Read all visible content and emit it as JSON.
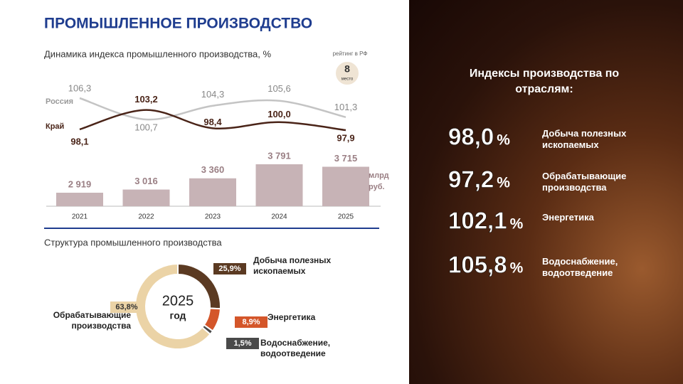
{
  "title": "ПРОМЫШЛЕННОЕ ПРОИЗВОДСТВО",
  "rating": {
    "label": "рейтинг в РФ",
    "value": 8,
    "unit": "место"
  },
  "chart_data": [
    {
      "type": "line-bar",
      "title": "Динамика индекса промышленного производства, %",
      "categories": [
        "2021",
        "2022",
        "2023",
        "2024",
        "2025"
      ],
      "series": [
        {
          "name": "Россия",
          "color": "#c4c4c4",
          "values": [
            106.3,
            100.7,
            104.3,
            105.6,
            101.3
          ],
          "value_labels": [
            "106,3",
            "100,7",
            "104,3",
            "105,6",
            "101,3"
          ]
        },
        {
          "name": "Край",
          "color": "#4a2418",
          "values": [
            98.1,
            103.2,
            98.4,
            100.0,
            97.9
          ],
          "value_labels": [
            "98,1",
            "103,2",
            "98,4",
            "100,0",
            "97,9"
          ]
        }
      ],
      "bars": {
        "name": "млрд руб.",
        "color": "#c7b3b6",
        "values": [
          2919,
          3016,
          3360,
          3791,
          3715
        ],
        "value_labels": [
          "2 919",
          "3 016",
          "3 360",
          "3 791",
          "3 715"
        ]
      }
    },
    {
      "type": "donut",
      "title": "Структура промышленного производства",
      "center": [
        "2025",
        "год"
      ],
      "categories": [
        "Добыча полезных ископаемых",
        "Энергетика",
        "Водоснабжение, водоотведение",
        "Обрабатывающие производства"
      ],
      "values": [
        25.9,
        8.9,
        1.5,
        63.8
      ],
      "value_labels": [
        "25,9%",
        "8,9%",
        "1,5%",
        "63,8%"
      ],
      "colors": [
        "#5b3a22",
        "#d4562a",
        "#4a4a4a",
        "#ebd3a6"
      ]
    }
  ],
  "panel": {
    "title": "Индексы производства по отраслям:",
    "items": [
      {
        "value": "98,0",
        "unit": "%",
        "label": "Добыча полезных ископаемых"
      },
      {
        "value": "97,2",
        "unit": "%",
        "label": "Обрабатывающие производства"
      },
      {
        "value": "102,1",
        "unit": "%",
        "label": "Энергетика"
      },
      {
        "value": "105,8",
        "unit": "%",
        "label": "Водоснабжение, водоотведение"
      }
    ]
  }
}
